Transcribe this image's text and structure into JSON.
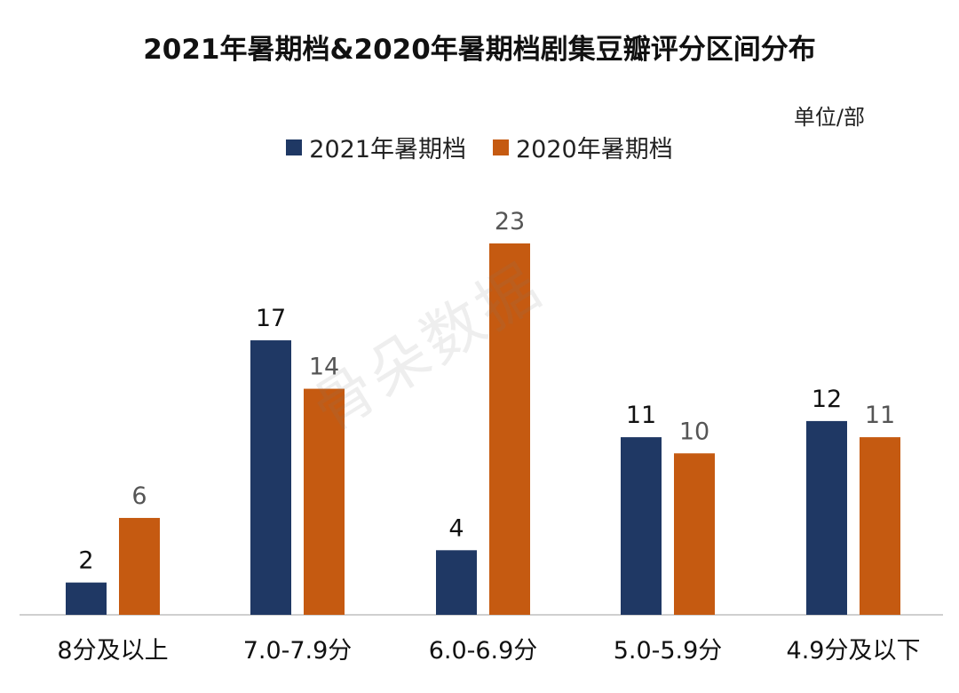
{
  "chart_data": {
    "type": "bar",
    "title": "2021年暑期档&2020年暑期档剧集豆瓣评分区间分布",
    "unit": "单位/部",
    "categories": [
      "8分及以上",
      "7.0-7.9分",
      "6.0-6.9分",
      "5.0-5.9分",
      "4.9分及以下"
    ],
    "series": [
      {
        "name": "2021年暑期档",
        "values": [
          2,
          17,
          4,
          11,
          12
        ],
        "color": "#1f3864"
      },
      {
        "name": "2020年暑期档",
        "values": [
          6,
          14,
          23,
          10,
          11
        ],
        "color": "#c55a11"
      }
    ],
    "xlabel": "",
    "ylabel": "",
    "ylim": [
      0,
      23
    ],
    "legend": "top-center",
    "grid": false
  },
  "watermark": "骨朵数据"
}
